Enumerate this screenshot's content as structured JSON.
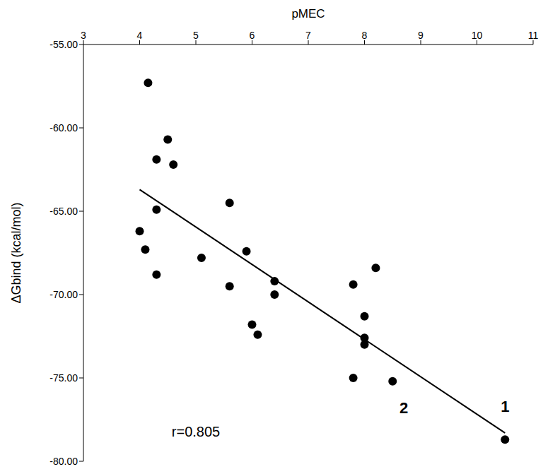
{
  "chart_data": {
    "type": "scatter",
    "x_label": "pMEC",
    "y_label": "ΔGbind (kcal/mol)",
    "color": "#000000",
    "marker": "circle",
    "x": [
      4.15,
      4.5,
      4.3,
      4.6,
      4.3,
      4.0,
      4.1,
      4.3,
      5.1,
      5.6,
      5.9,
      5.6,
      6.4,
      6.4,
      6.0,
      6.1,
      7.8,
      7.8,
      8.2,
      8.0,
      8.0,
      8.0,
      8.5,
      10.5
    ],
    "values": [
      -57.3,
      -60.7,
      -61.9,
      -62.2,
      -64.9,
      -66.2,
      -67.3,
      -68.8,
      -67.8,
      -64.5,
      -67.4,
      -69.5,
      -69.2,
      -70.0,
      -71.8,
      -72.4,
      -69.4,
      -75.0,
      -68.4,
      -71.3,
      -72.6,
      -73.0,
      -75.2,
      -78.7
    ],
    "xlim": [
      3,
      11
    ],
    "xticks": [
      3,
      4,
      5,
      6,
      7,
      8,
      9,
      10,
      11
    ],
    "ylim": [
      -80,
      -55
    ],
    "yticks": [
      {
        "value": -80,
        "label": "-80.00"
      },
      {
        "value": -75,
        "label": "-75.00"
      },
      {
        "value": -70,
        "label": "-70.00"
      },
      {
        "value": -65,
        "label": "-65.00"
      },
      {
        "value": -60,
        "label": "-60.00"
      },
      {
        "value": -55,
        "label": "-55.00"
      }
    ],
    "trendline": {
      "x": [
        4.0,
        10.5
      ],
      "y": [
        -63.7,
        -78.3
      ]
    },
    "annotations": [
      {
        "text": "1",
        "x": 10.5,
        "y": -76.7
      },
      {
        "text": "2",
        "x": 8.7,
        "y": -76.8
      },
      {
        "text": "r=0.805",
        "x": 5.0,
        "y": -78.2
      }
    ],
    "grid": false
  }
}
